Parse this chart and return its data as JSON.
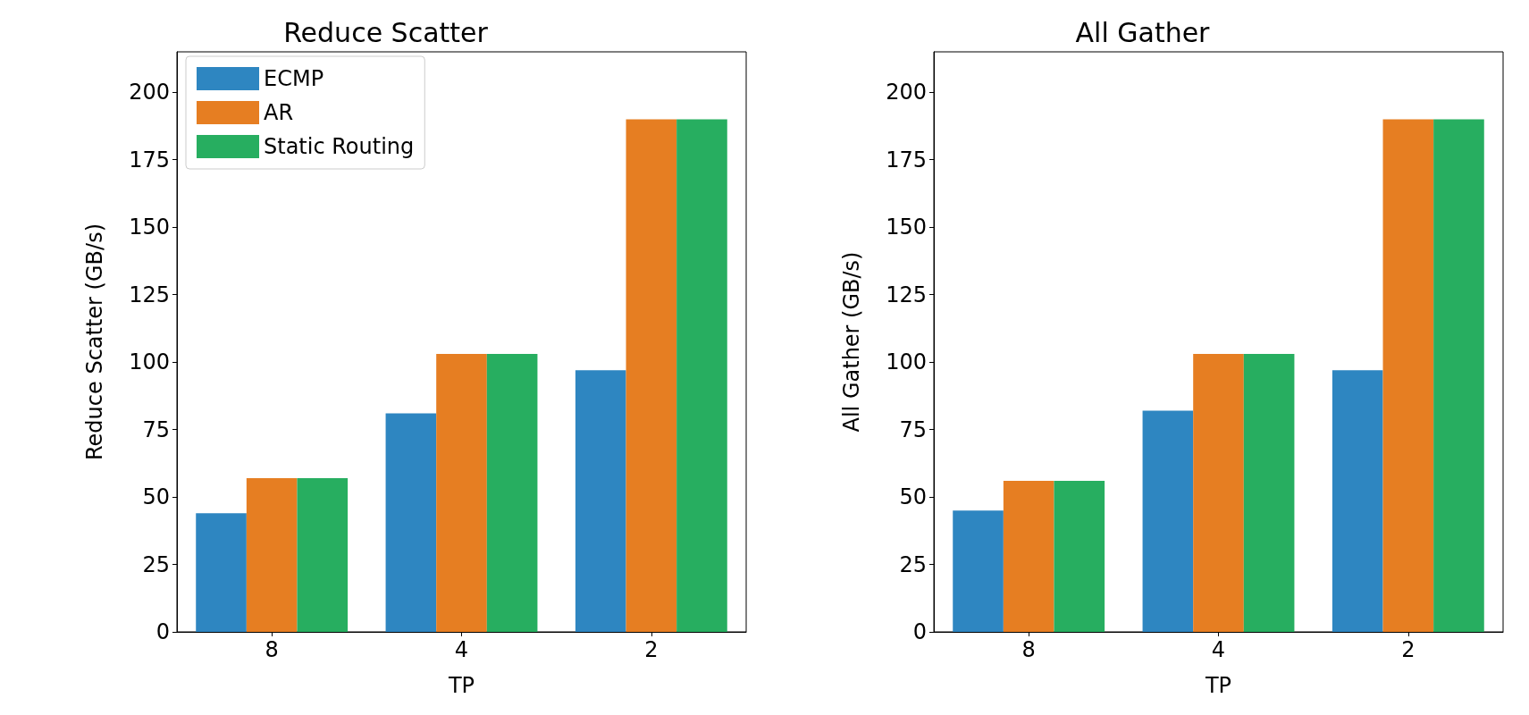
{
  "chart_data": [
    {
      "type": "bar",
      "title": "Reduce Scatter",
      "xlabel": "TP",
      "ylabel": "Reduce Scatter (GB/s)",
      "categories": [
        "8",
        "4",
        "2"
      ],
      "series": [
        {
          "name": "ECMP",
          "color": "#2e86c1",
          "values": [
            44,
            81,
            97
          ]
        },
        {
          "name": "AR",
          "color": "#e67e22",
          "values": [
            57,
            103,
            190
          ]
        },
        {
          "name": "Static Routing",
          "color": "#27ae60",
          "values": [
            57,
            103,
            190
          ]
        }
      ],
      "ylim": [
        0,
        215
      ],
      "yticks": [
        0,
        25,
        50,
        75,
        100,
        125,
        150,
        175,
        200
      ],
      "legend": "top left",
      "grid": false
    },
    {
      "type": "bar",
      "title": "All Gather",
      "xlabel": "TP",
      "ylabel": "All Gather (GB/s)",
      "categories": [
        "8",
        "4",
        "2"
      ],
      "series": [
        {
          "color": "#2e86c1",
          "values": [
            45,
            82,
            97
          ]
        },
        {
          "color": "#e67e22",
          "values": [
            56,
            103,
            190
          ]
        },
        {
          "color": "#27ae60",
          "values": [
            56,
            103,
            190
          ]
        }
      ],
      "ylim": [
        0,
        215
      ],
      "yticks": [
        0,
        25,
        50,
        75,
        100,
        125,
        150,
        175,
        200
      ],
      "grid": false
    }
  ]
}
